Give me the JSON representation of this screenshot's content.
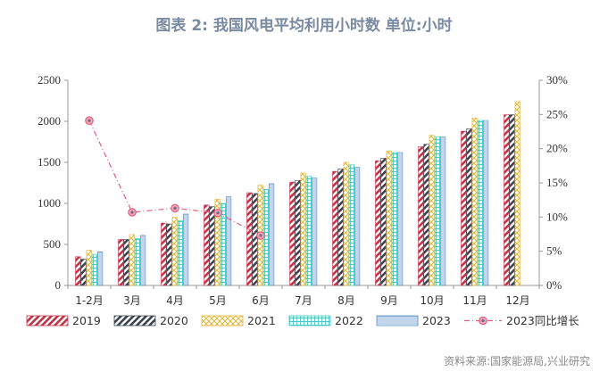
{
  "chart_data": {
    "type": "bar",
    "title": "图表 2:  我国风电平均利用小时数  单位:小时",
    "source": "资料来源:国家能源局,兴业研究",
    "categories": [
      "1-2月",
      "3月",
      "4月",
      "5月",
      "6月",
      "7月",
      "8月",
      "9月",
      "10月",
      "11月",
      "12月"
    ],
    "series": [
      {
        "name": "2019",
        "color": "#c0334a",
        "pattern": "diag-red",
        "values": [
          350,
          560,
          760,
          980,
          1130,
          1260,
          1390,
          1520,
          1690,
          1880,
          2080
        ]
      },
      {
        "name": "2020",
        "color": "#3a4350",
        "pattern": "diag-dark",
        "values": [
          320,
          560,
          750,
          960,
          1120,
          1280,
          1420,
          1550,
          1720,
          1910,
          2080
        ]
      },
      {
        "name": "2021",
        "color": "#e3b63a",
        "pattern": "cross-gold",
        "values": [
          430,
          620,
          830,
          1050,
          1220,
          1370,
          1500,
          1640,
          1830,
          2040,
          2240
        ]
      },
      {
        "name": "2022",
        "color": "#47c8c8",
        "pattern": "grid-teal",
        "values": [
          380,
          570,
          790,
          1000,
          1170,
          1330,
          1470,
          1620,
          1810,
          2010,
          null
        ]
      },
      {
        "name": "2023",
        "color": "#5b8fc7",
        "pattern": "hlines-blue",
        "values": [
          410,
          610,
          870,
          1080,
          1240,
          1310,
          1440,
          1620,
          1810,
          2010,
          null
        ]
      }
    ],
    "line_series": {
      "name": "2023同比增长",
      "color": "#e0607e",
      "axis": "right",
      "values": [
        0.241,
        0.107,
        0.113,
        0.106,
        0.073,
        null,
        null,
        null,
        null,
        null,
        null
      ]
    },
    "y_left": {
      "min": 0,
      "max": 2500,
      "ticks": [
        0,
        500,
        1000,
        1500,
        2000,
        2500
      ]
    },
    "y_right": {
      "min": 0,
      "max": 0.3,
      "ticks": [
        "0%",
        "5%",
        "10%",
        "15%",
        "20%",
        "25%",
        "30%"
      ]
    },
    "legend_position": "bottom"
  }
}
